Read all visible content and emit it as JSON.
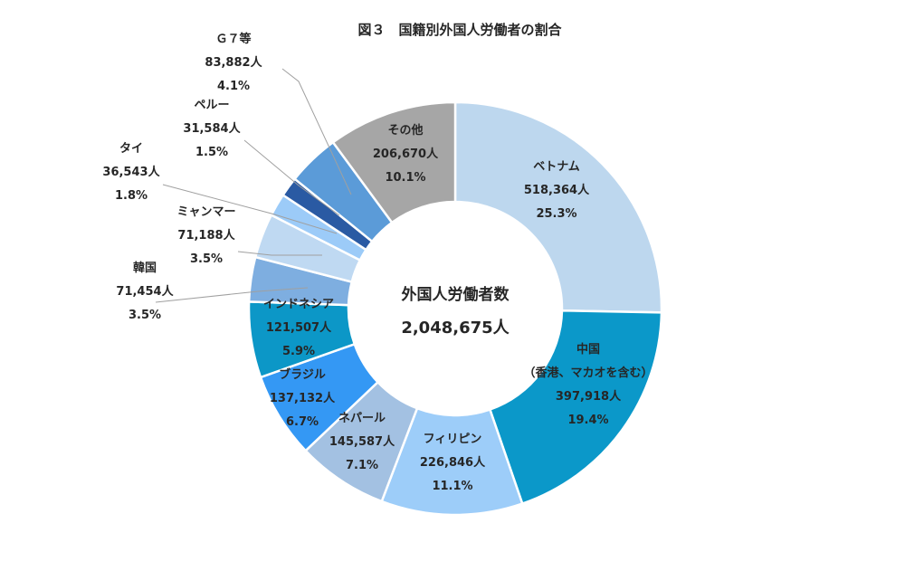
{
  "chart_data": {
    "type": "pie",
    "title": "図３　国籍別外国人労働者の割合",
    "center_label": "外国人労働者数",
    "center_value": "2,048,675人",
    "slices": [
      {
        "name": "ベトナム",
        "value": 518364,
        "value_label": "518,364人",
        "percent": "25.3%",
        "color": "#bdd7ee"
      },
      {
        "name": "中国\n（香港、マカオを含む）",
        "value": 397918,
        "value_label": "397,918人",
        "percent": "19.4%",
        "color": "#0b98c9"
      },
      {
        "name": "フィリピン",
        "value": 226846,
        "value_label": "226,846人",
        "percent": "11.1%",
        "color": "#9dcdf9"
      },
      {
        "name": "ネパール",
        "value": 145587,
        "value_label": "145,587人",
        "percent": "7.1%",
        "color": "#a3c1e2"
      },
      {
        "name": "ブラジル",
        "value": 137132,
        "value_label": "137,132人",
        "percent": "6.7%",
        "color": "#3498f4"
      },
      {
        "name": "インドネシア",
        "value": 121507,
        "value_label": "121,507人",
        "percent": "5.9%",
        "color": "#0c97c7"
      },
      {
        "name": "韓国",
        "value": 71454,
        "value_label": "71,454人",
        "percent": "3.5%",
        "color": "#7eaee0"
      },
      {
        "name": "ミャンマー",
        "value": 71188,
        "value_label": "71,188人",
        "percent": "3.5%",
        "color": "#bfd9f2"
      },
      {
        "name": "タイ",
        "value": 36543,
        "value_label": "36,543人",
        "percent": "1.8%",
        "color": "#9ccbf8"
      },
      {
        "name": "ペルー",
        "value": 31584,
        "value_label": "31,584人",
        "percent": "1.5%",
        "color": "#2a5aa3"
      },
      {
        "name": "Ｇ７等",
        "value": 83882,
        "value_label": "83,882人",
        "percent": "4.1%",
        "color": "#5b9bd8"
      },
      {
        "name": "その他",
        "value": 206670,
        "value_label": "206,670人",
        "percent": "10.1%",
        "color": "#a6a6a6"
      }
    ]
  }
}
